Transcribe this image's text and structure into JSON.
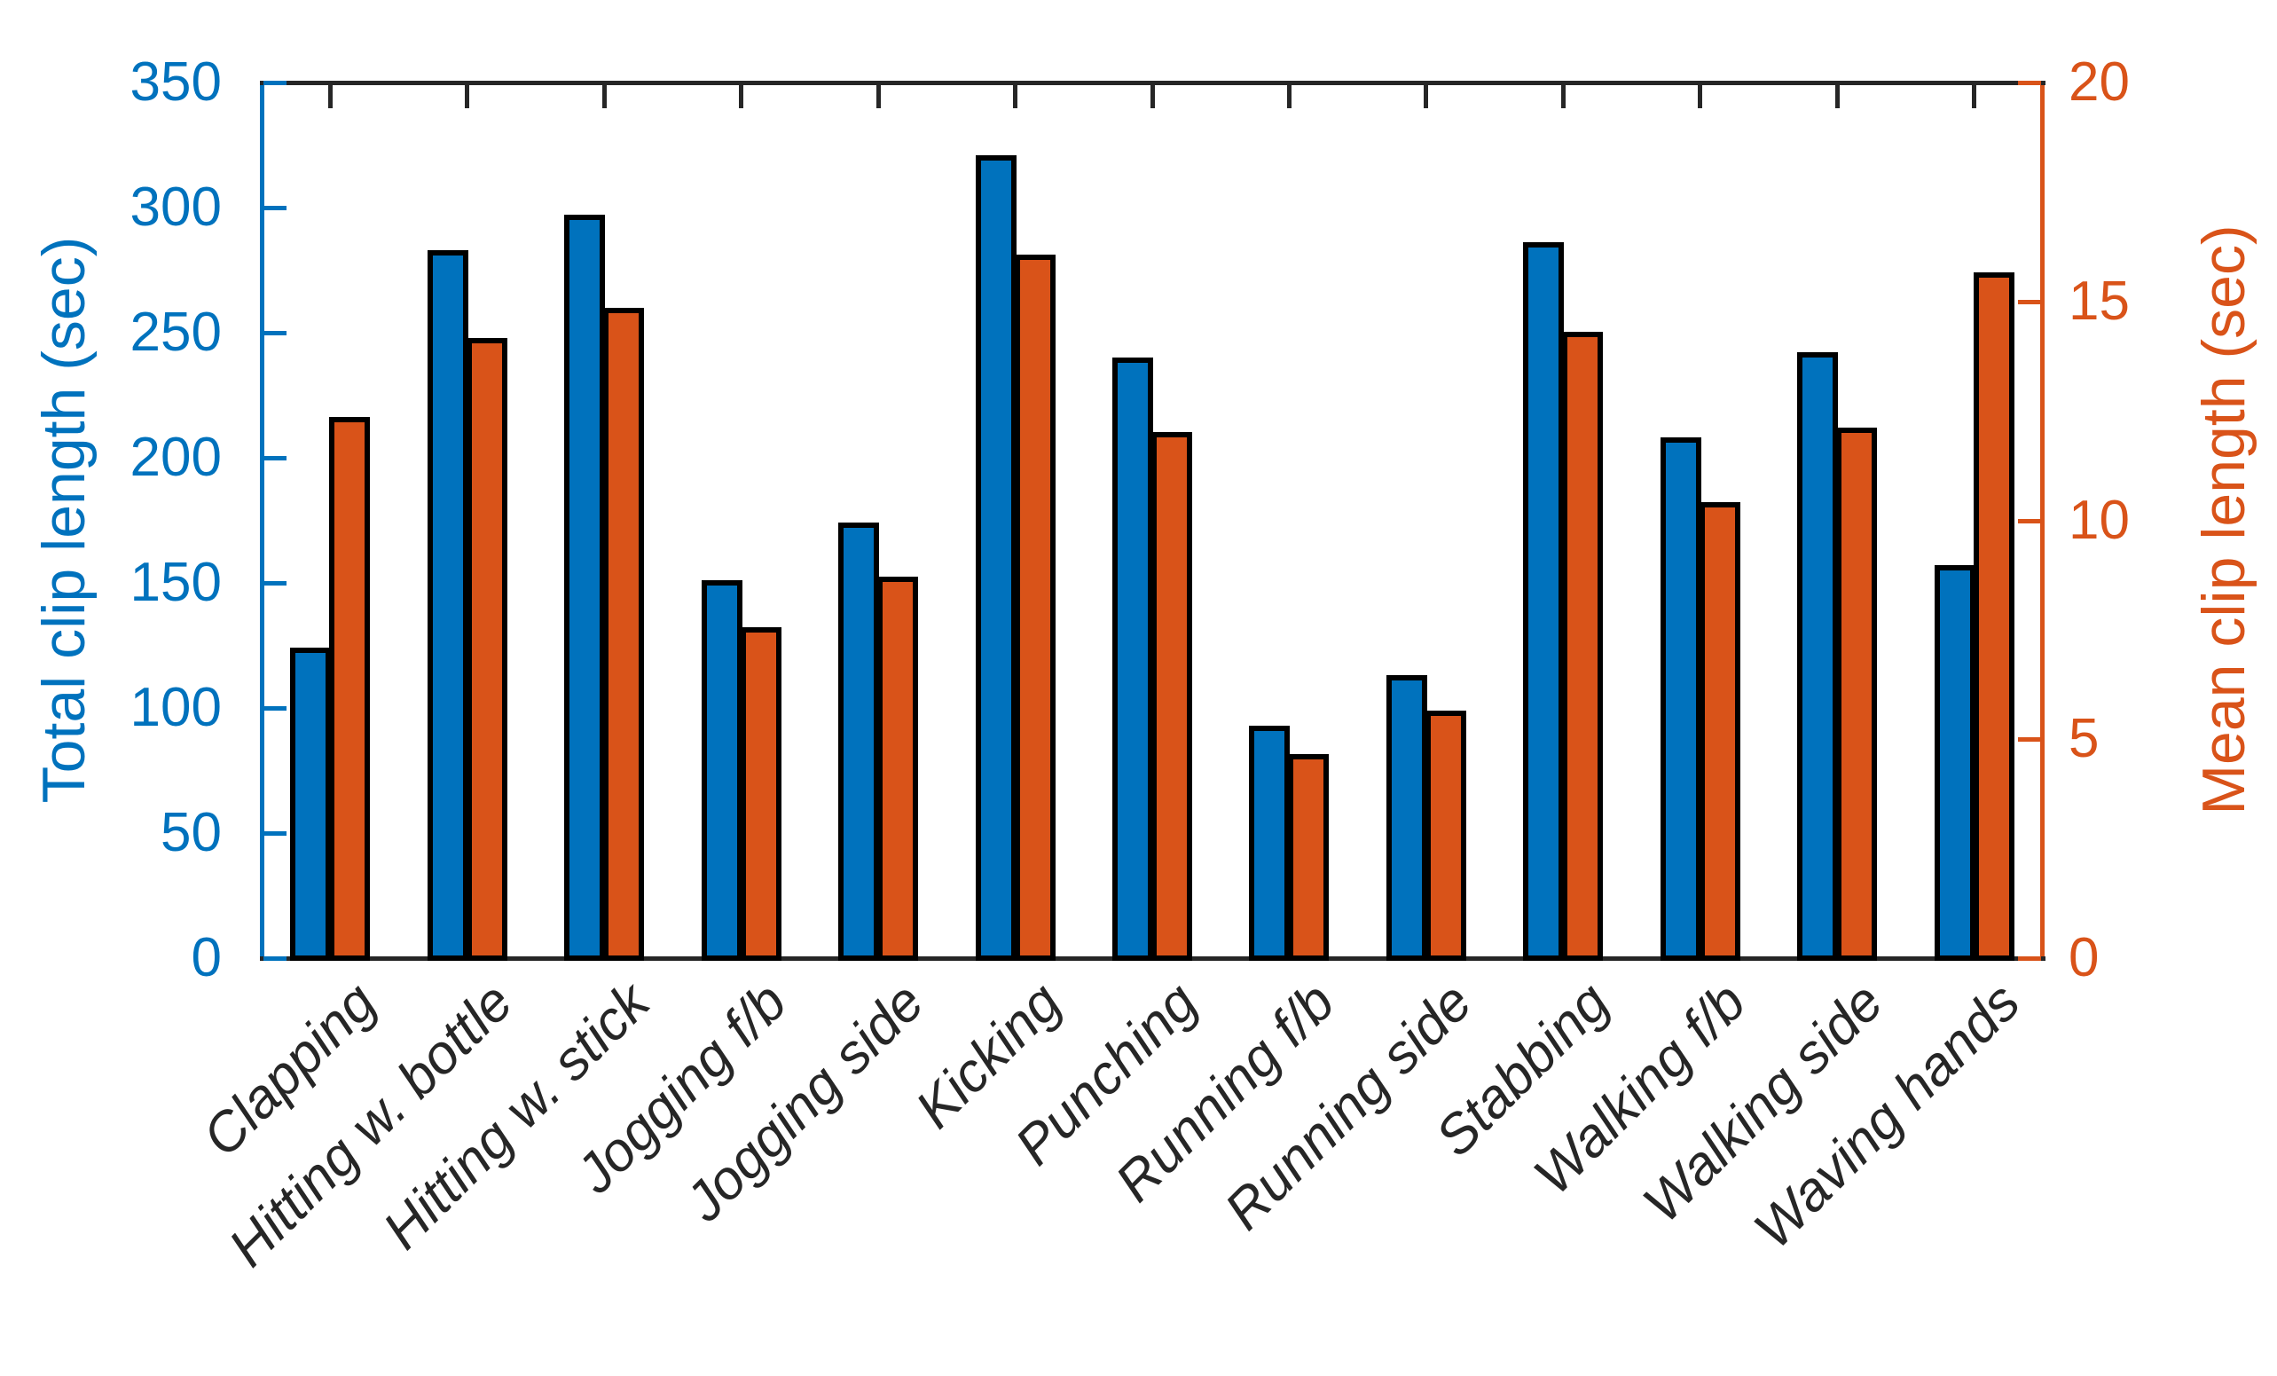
{
  "axes": {
    "left": {
      "label": "Total clip length (sec)",
      "color": "#0072BD",
      "ticks": [
        0,
        50,
        100,
        150,
        200,
        250,
        300,
        350
      ],
      "ylim": [
        0,
        350
      ]
    },
    "right": {
      "label": "Mean clip length (sec)",
      "color": "#D95319",
      "ticks": [
        0,
        5,
        10,
        15,
        20
      ],
      "ylim": [
        0,
        20
      ]
    },
    "x": {
      "tick_label_color": "#262626",
      "tick_label_style": "italic",
      "rotation_deg": -45
    }
  },
  "chart_data": {
    "type": "bar",
    "title": "",
    "categories": [
      "Clapping",
      "Hitting w. bottle",
      "Hitting w. stick",
      "Jogging f/b",
      "Jogging side",
      "Kicking",
      "Punching",
      "Running f/b",
      "Running side",
      "Stabbing",
      "Walking f/b",
      "Walking side",
      "Waving hands"
    ],
    "series": [
      {
        "name": "Total clip length (sec)",
        "axis": "left",
        "color": "#0072BD",
        "values": [
          123,
          282,
          296,
          150,
          173,
          320,
          239,
          92,
          112,
          285,
          207,
          241,
          156
        ]
      },
      {
        "name": "Mean clip length (sec)",
        "axis": "right",
        "color": "#D95319",
        "values": [
          12.3,
          14.1,
          14.8,
          7.5,
          8.65,
          16,
          11.95,
          4.6,
          5.6,
          14.25,
          10.35,
          12.05,
          15.6
        ]
      }
    ],
    "ylabel_left": "Total clip length (sec)",
    "ylabel_right": "Mean clip length (sec)",
    "left_ylim": [
      0,
      350
    ],
    "right_ylim": [
      0,
      20
    ],
    "left_yticks": [
      0,
      50,
      100,
      150,
      200,
      250,
      300,
      350
    ],
    "right_yticks": [
      0,
      5,
      10,
      15,
      20
    ],
    "grid": false,
    "legend": false,
    "bar_edge_color": "#000000",
    "axis_box_color": "#262626"
  }
}
